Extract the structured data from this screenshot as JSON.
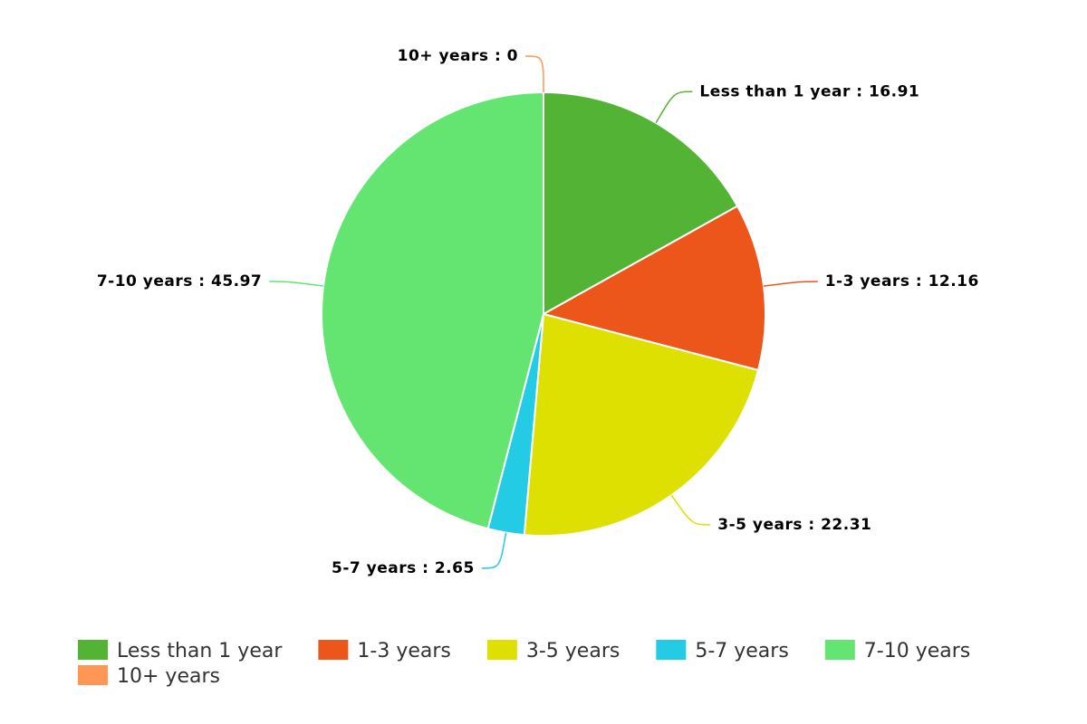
{
  "chart_data": {
    "type": "pie",
    "categories": [
      "Less than 1 year",
      "1-3 years",
      "3-5 years",
      "5-7 years",
      "7-10 years",
      "10+ years"
    ],
    "values": [
      16.91,
      12.16,
      22.31,
      2.65,
      45.97,
      0
    ],
    "value_labels": [
      "Less than 1 year : 16.91",
      "1-3 years : 12.16",
      "3-5 years : 22.31",
      "5-7 years : 2.65",
      "7-10 years : 45.97",
      "10+ years : 0"
    ],
    "colors": [
      "#52b334",
      "#ec561b",
      "#dde000",
      "#24cbe5",
      "#64e572",
      "#ff9655"
    ],
    "legend": "bottom"
  }
}
